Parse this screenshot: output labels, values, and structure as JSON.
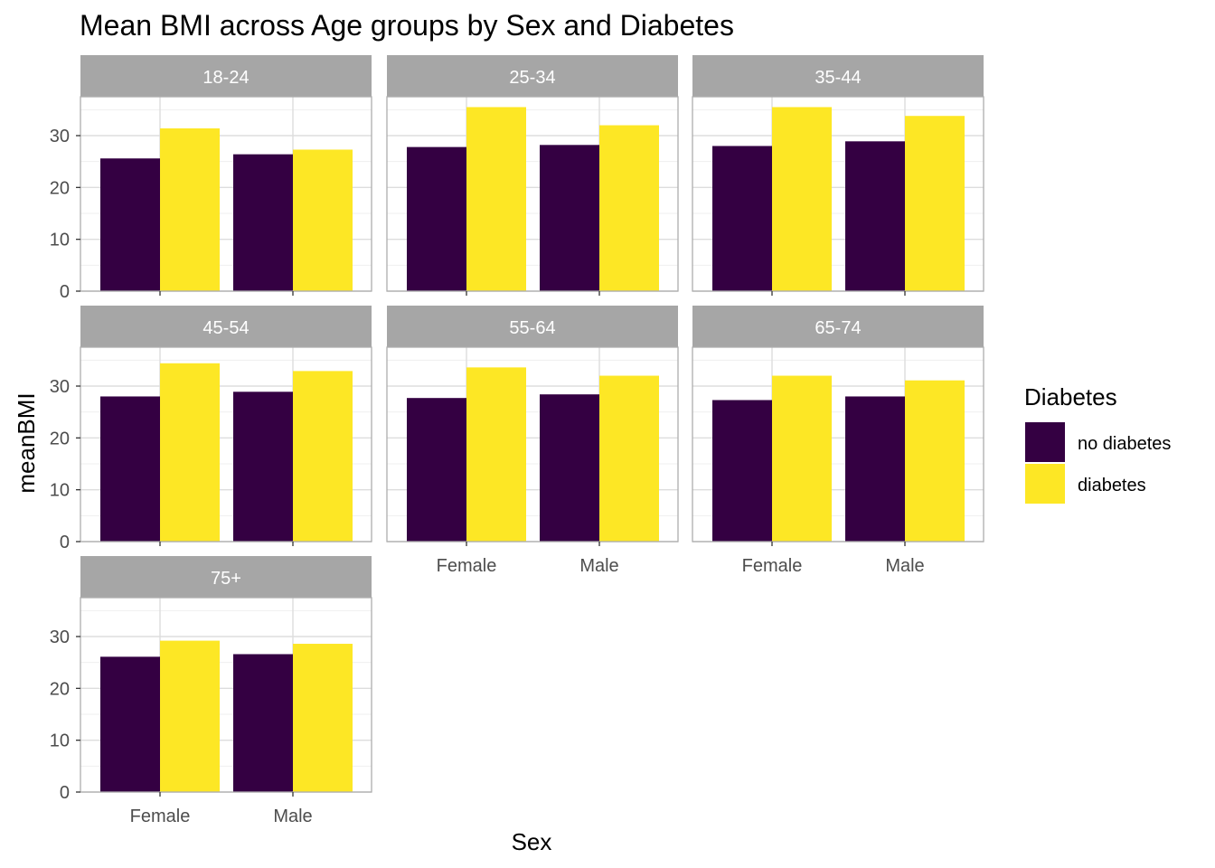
{
  "chart_data": {
    "type": "bar",
    "title": "Mean BMI across Age groups by Sex and Diabetes",
    "xlabel": "Sex",
    "ylabel": "meanBMI",
    "ylim": [
      0,
      37.5
    ],
    "y_ticks": [
      0,
      10,
      20,
      30
    ],
    "grid": true,
    "legend": {
      "title": "Diabetes",
      "placement": "right",
      "entries": [
        {
          "label": "no diabetes",
          "color": "#340042"
        },
        {
          "label": "diabetes",
          "color": "#FDE725"
        }
      ]
    },
    "categories": [
      "Female",
      "Male"
    ],
    "panels": [
      {
        "label": "18-24",
        "series": [
          {
            "name": "no diabetes",
            "values": [
              25.6,
              26.4
            ]
          },
          {
            "name": "diabetes",
            "values": [
              31.4,
              27.3
            ]
          }
        ]
      },
      {
        "label": "25-34",
        "series": [
          {
            "name": "no diabetes",
            "values": [
              27.8,
              28.2
            ]
          },
          {
            "name": "diabetes",
            "values": [
              35.5,
              32.0
            ]
          }
        ]
      },
      {
        "label": "35-44",
        "series": [
          {
            "name": "no diabetes",
            "values": [
              28.0,
              28.9
            ]
          },
          {
            "name": "diabetes",
            "values": [
              35.5,
              33.8
            ]
          }
        ]
      },
      {
        "label": "45-54",
        "series": [
          {
            "name": "no diabetes",
            "values": [
              28.0,
              28.9
            ]
          },
          {
            "name": "diabetes",
            "values": [
              34.4,
              32.9
            ]
          }
        ]
      },
      {
        "label": "55-64",
        "series": [
          {
            "name": "no diabetes",
            "values": [
              27.7,
              28.4
            ]
          },
          {
            "name": "diabetes",
            "values": [
              33.6,
              32.0
            ]
          }
        ]
      },
      {
        "label": "65-74",
        "series": [
          {
            "name": "no diabetes",
            "values": [
              27.3,
              28.0
            ]
          },
          {
            "name": "diabetes",
            "values": [
              32.0,
              31.1
            ]
          }
        ]
      },
      {
        "label": "75+",
        "series": [
          {
            "name": "no diabetes",
            "values": [
              26.1,
              26.6
            ]
          },
          {
            "name": "diabetes",
            "values": [
              29.2,
              28.6
            ]
          }
        ]
      }
    ]
  }
}
